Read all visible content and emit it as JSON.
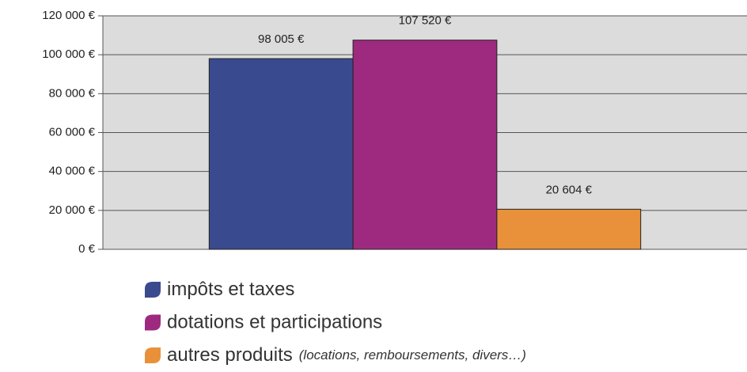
{
  "chart_data": {
    "type": "bar",
    "categories": [
      null
    ],
    "series": [
      {
        "name": "impôts et taxes",
        "color": "#3a4a8e",
        "values": [
          98005
        ],
        "value_labels": [
          "98 005 €"
        ]
      },
      {
        "name": "dotations et participations",
        "color": "#9e2a80",
        "values": [
          107520
        ],
        "value_labels": [
          "107 520 €"
        ]
      },
      {
        "name": "autres produits",
        "note": "(locations, remboursements, divers…)",
        "color": "#e8913a",
        "values": [
          20604
        ],
        "value_labels": [
          "20 604 €"
        ]
      }
    ],
    "ylim": [
      0,
      120000
    ],
    "yticks": [
      {
        "value": 0,
        "label": "0 €"
      },
      {
        "value": 20000,
        "label": "20 000 €"
      },
      {
        "value": 40000,
        "label": "40 000 €"
      },
      {
        "value": 60000,
        "label": "60 000 €"
      },
      {
        "value": 80000,
        "label": "80 000 €"
      },
      {
        "value": 100000,
        "label": "100 000 €"
      },
      {
        "value": 120000,
        "label": "120 000 €"
      }
    ],
    "grid": true,
    "plot_background": "#dcdcdc"
  }
}
